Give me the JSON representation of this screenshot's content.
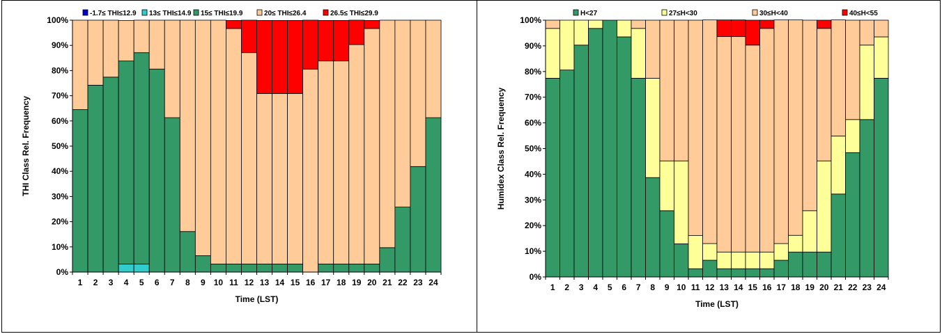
{
  "chart_data": [
    {
      "type": "bar",
      "stacked": true,
      "xlabel": "Time (LST)",
      "ylabel": "THI Class Rel. Frequency",
      "categories": [
        "1",
        "2",
        "3",
        "4",
        "5",
        "6",
        "7",
        "8",
        "9",
        "10",
        "11",
        "12",
        "13",
        "14",
        "15",
        "16",
        "17",
        "18",
        "19",
        "20",
        "21",
        "22",
        "23",
        "24"
      ],
      "ylim": [
        0,
        100
      ],
      "yticks": [
        "0%",
        "10%",
        "20%",
        "30%",
        "40%",
        "50%",
        "60%",
        "70%",
        "80%",
        "90%",
        "100%"
      ],
      "legend_position": "top",
      "series": [
        {
          "name": "-1.7≤ THI≤12.9",
          "color": "#0000cc",
          "values": [
            0,
            0,
            0,
            0,
            0,
            0,
            0,
            0,
            0,
            0,
            0,
            0,
            0,
            0,
            0,
            0,
            0,
            0,
            0,
            0,
            0,
            0,
            0,
            0
          ]
        },
        {
          "name": "13≤ THI≤14.9",
          "color": "#33cccc",
          "values": [
            0,
            0,
            0,
            3.2,
            3.2,
            0,
            0,
            0,
            0,
            0,
            0,
            0,
            0,
            0,
            0,
            0,
            0,
            0,
            0,
            0,
            0,
            0,
            0,
            0
          ]
        },
        {
          "name": "15≤ THI≤19.9",
          "color": "#339966",
          "values": [
            64.5,
            74.2,
            77.4,
            80.6,
            83.9,
            80.6,
            61.3,
            16.1,
            6.5,
            3.2,
            3.2,
            3.2,
            3.2,
            3.2,
            3.2,
            0,
            3.2,
            3.2,
            3.2,
            3.2,
            9.7,
            25.8,
            41.9,
            61.3
          ]
        },
        {
          "name": "20≤ THI≤26.4",
          "color": "#ffcc99",
          "values": [
            35.5,
            25.8,
            22.6,
            16.1,
            12.9,
            19.4,
            38.7,
            83.9,
            93.5,
            96.8,
            93.5,
            83.9,
            67.7,
            67.7,
            67.7,
            80.6,
            80.6,
            80.6,
            87.1,
            93.5,
            90.3,
            74.2,
            58.1,
            38.7
          ]
        },
        {
          "name": "26.5≤ THI≤29.9",
          "color": "#ff0000",
          "values": [
            0,
            0,
            0,
            0,
            0,
            0,
            0,
            0,
            0,
            0,
            3.2,
            12.9,
            29.0,
            29.0,
            29.0,
            19.4,
            16.1,
            16.1,
            9.7,
            3.2,
            0,
            0,
            0,
            0
          ]
        }
      ]
    },
    {
      "type": "bar",
      "stacked": true,
      "xlabel": "Time (LST)",
      "ylabel": "Humidex Class Rel. Frequency",
      "categories": [
        "1",
        "2",
        "3",
        "4",
        "5",
        "6",
        "7",
        "8",
        "9",
        "10",
        "11",
        "12",
        "13",
        "14",
        "15",
        "16",
        "17",
        "18",
        "19",
        "20",
        "21",
        "22",
        "23",
        "24"
      ],
      "ylim": [
        0,
        100
      ],
      "yticks": [
        "0%",
        "10%",
        "20%",
        "30%",
        "40%",
        "50%",
        "60%",
        "70%",
        "80%",
        "90%",
        "100%"
      ],
      "legend_position": "top",
      "series": [
        {
          "name": "H<27",
          "color": "#339966",
          "values": [
            77.4,
            80.6,
            90.3,
            96.8,
            100,
            93.5,
            77.4,
            38.7,
            25.8,
            12.9,
            3.2,
            6.5,
            3.2,
            3.2,
            3.2,
            3.2,
            6.5,
            9.7,
            9.7,
            9.7,
            32.3,
            48.4,
            61.3,
            77.4
          ]
        },
        {
          "name": "27≤H<30",
          "color": "#ffff99",
          "values": [
            19.4,
            19.4,
            9.7,
            3.2,
            0,
            6.5,
            19.4,
            38.7,
            19.4,
            32.3,
            12.9,
            6.5,
            6.5,
            6.5,
            6.5,
            6.5,
            6.5,
            6.5,
            16.1,
            35.5,
            22.6,
            12.9,
            29.0,
            16.1
          ]
        },
        {
          "name": "30≤H<40",
          "color": "#ffcc99",
          "values": [
            3.2,
            0,
            0,
            0,
            0,
            0,
            3.2,
            22.6,
            54.8,
            54.8,
            83.9,
            87.1,
            83.9,
            83.9,
            80.6,
            87.1,
            87.1,
            83.9,
            74.2,
            51.6,
            45.2,
            38.7,
            9.7,
            6.5
          ]
        },
        {
          "name": "40≤H<55",
          "color": "#ff0000",
          "values": [
            0,
            0,
            0,
            0,
            0,
            0,
            0,
            0,
            0,
            0,
            0,
            0,
            6.5,
            6.5,
            9.7,
            3.2,
            0,
            0,
            0,
            3.2,
            0,
            0,
            0,
            0
          ]
        }
      ]
    }
  ]
}
